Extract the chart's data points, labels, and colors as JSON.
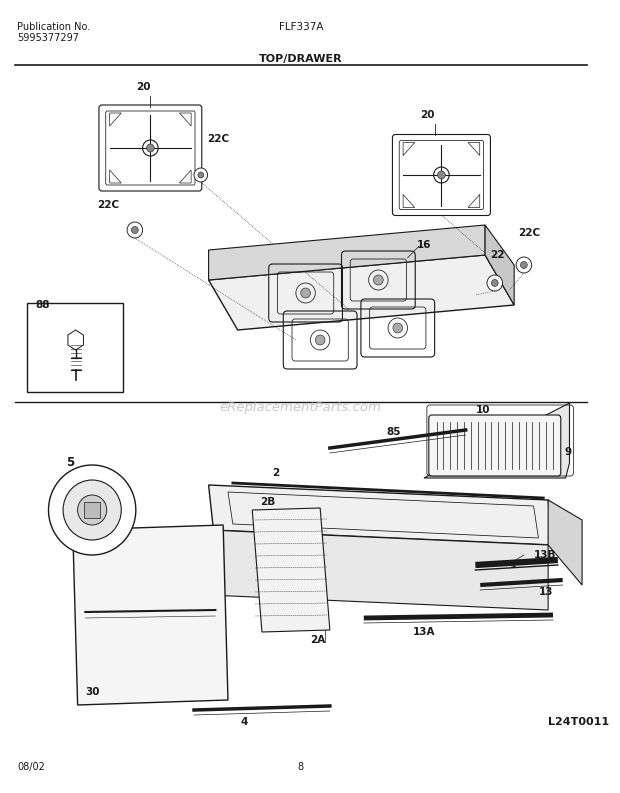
{
  "title": "FLF337A",
  "subtitle": "TOP/DRAWER",
  "pub_no": "Publication No.",
  "pub_num": "5995377297",
  "date": "08/02",
  "page": "8",
  "diagram_id": "L24T0011",
  "bg_color": "#ffffff",
  "lc": "#1a1a1a",
  "watermark": "eReplacementParts.com",
  "lw": 0.8
}
